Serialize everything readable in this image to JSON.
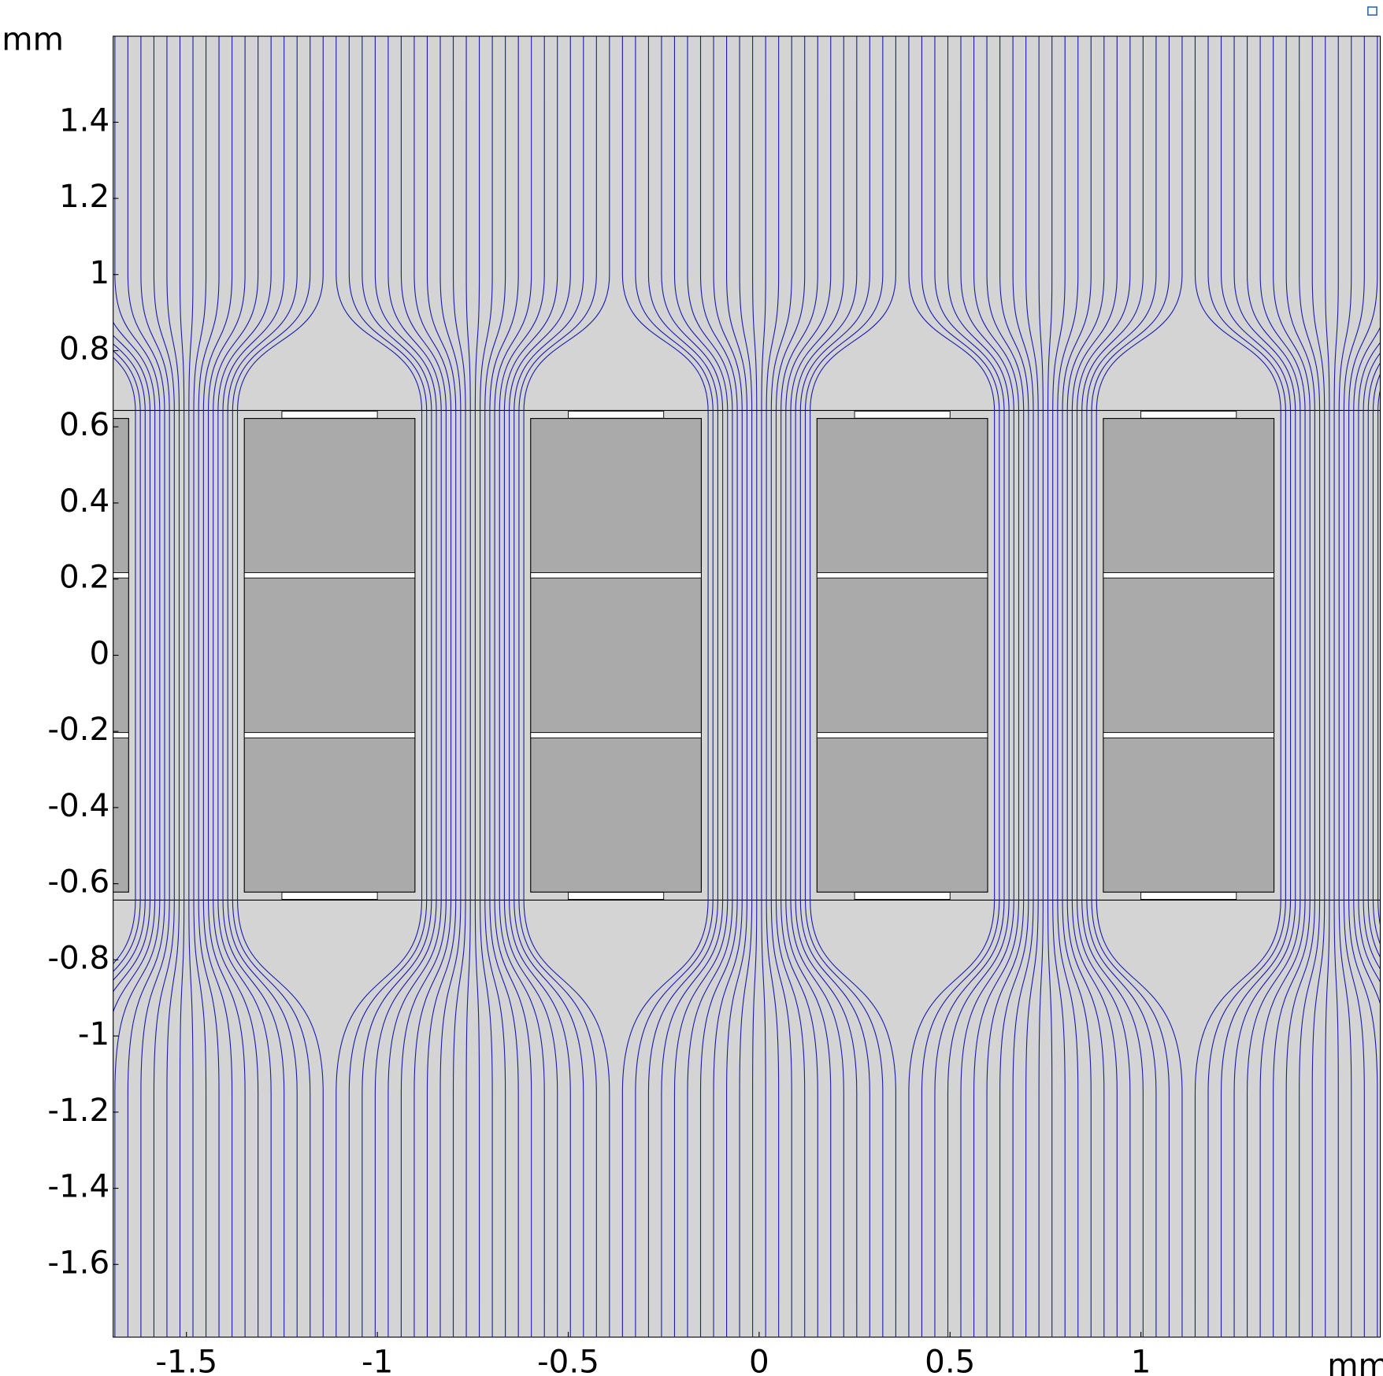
{
  "chart_data": {
    "type": "field-plot",
    "x_unit": "mm",
    "y_unit": "mm",
    "xlim": [
      -1.692,
      1.627
    ],
    "ylim": [
      -1.791,
      1.626
    ],
    "xticks": [
      -1.5,
      -1,
      -0.5,
      0,
      0.5,
      1
    ],
    "yticks": [
      1.4,
      1.2,
      1,
      0.8,
      0.6,
      0.4,
      0.2,
      0,
      -0.2,
      -0.4,
      -0.6,
      -0.8,
      -1,
      -1.2,
      -1.4,
      -1.6
    ],
    "line_color": "#1c1cb0"
  }
}
